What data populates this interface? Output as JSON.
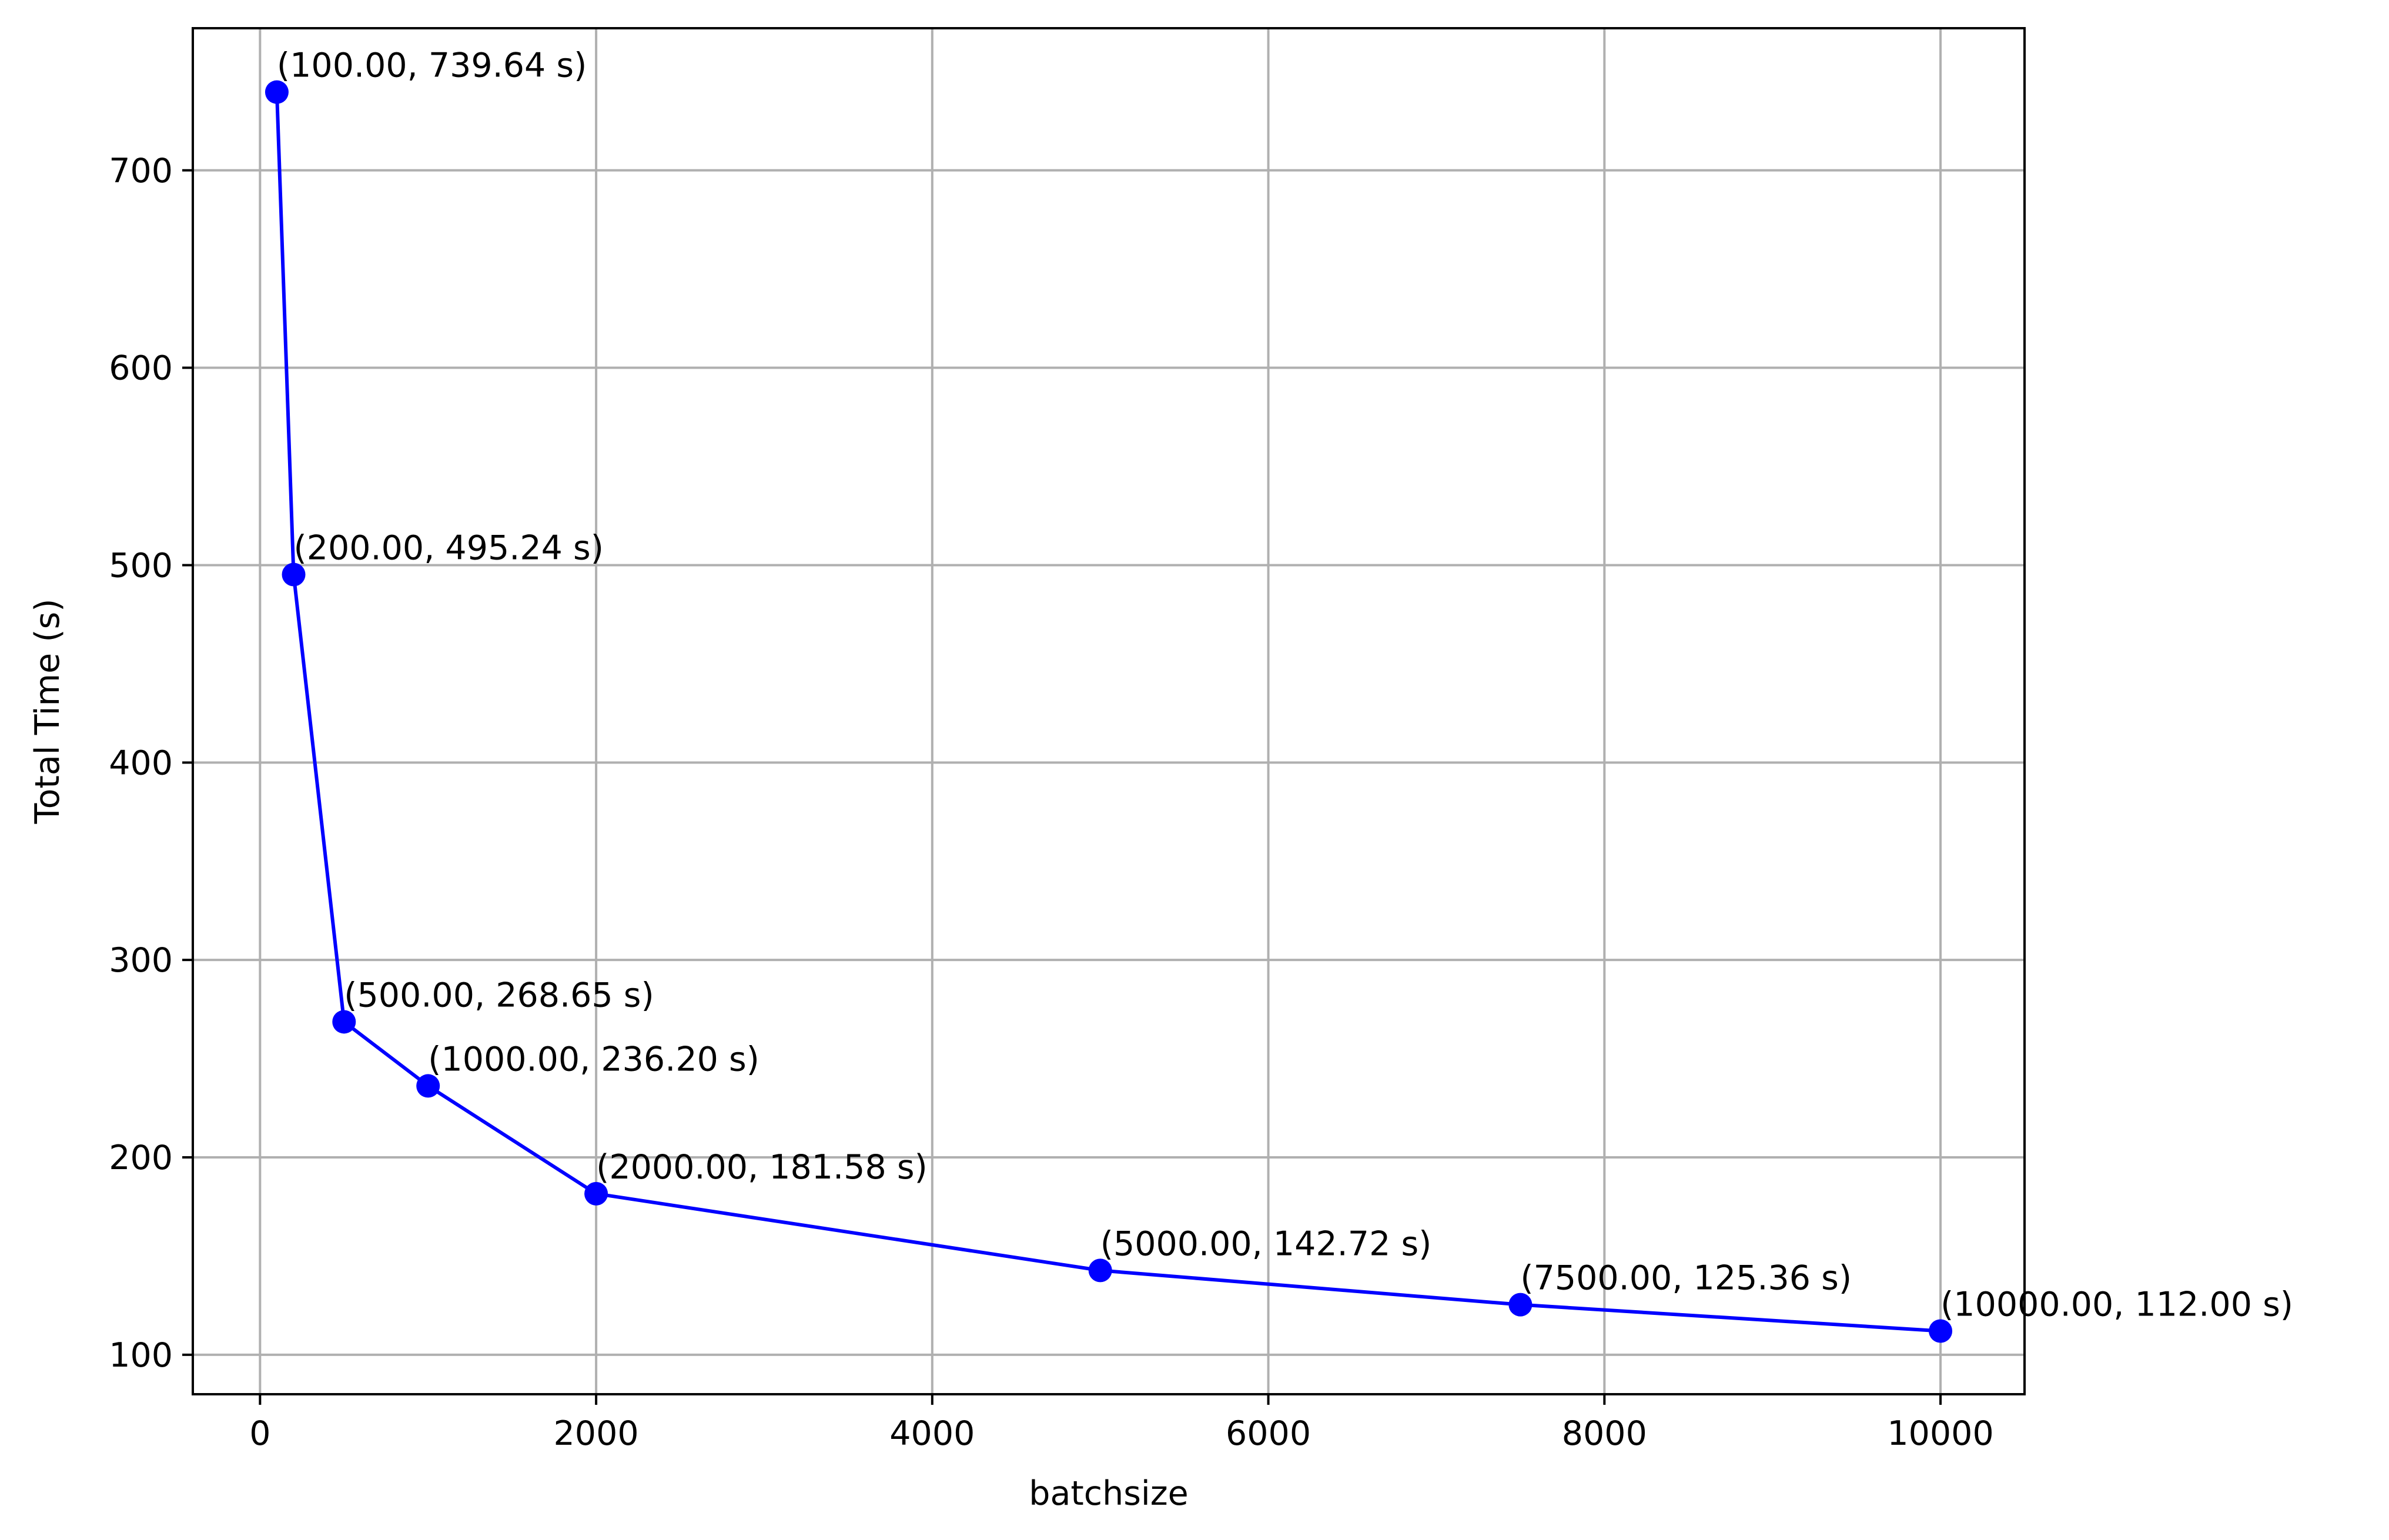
{
  "chart_data": {
    "type": "line",
    "title": "",
    "xlabel": "batchsize",
    "ylabel": "Total Time (s)",
    "xlim": [
      -400,
      10500
    ],
    "ylim": [
      80,
      772
    ],
    "xticks": [
      0,
      2000,
      4000,
      6000,
      8000,
      10000
    ],
    "yticks": [
      100,
      200,
      300,
      400,
      500,
      600,
      700
    ],
    "grid": true,
    "series": [
      {
        "line_color": "#0000ff",
        "marker": "circle",
        "points": [
          {
            "x": 100,
            "y": 739.64,
            "label": "(100.00, 739.64 s)"
          },
          {
            "x": 200,
            "y": 495.24,
            "label": "(200.00, 495.24 s)"
          },
          {
            "x": 500,
            "y": 268.65,
            "label": "(500.00, 268.65 s)"
          },
          {
            "x": 1000,
            "y": 236.2,
            "label": "(1000.00, 236.20 s)"
          },
          {
            "x": 2000,
            "y": 181.58,
            "label": "(2000.00, 181.58 s)"
          },
          {
            "x": 5000,
            "y": 142.72,
            "label": "(5000.00, 142.72 s)"
          },
          {
            "x": 7500,
            "y": 125.36,
            "label": "(7500.00, 125.36 s)"
          },
          {
            "x": 10000,
            "y": 112.0,
            "label": "(10000.00, 112.00 s)"
          }
        ]
      }
    ]
  }
}
